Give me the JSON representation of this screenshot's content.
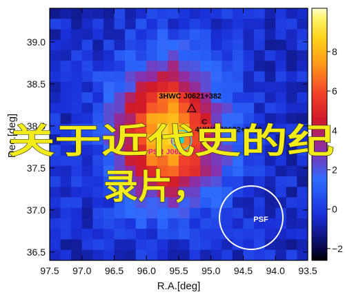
{
  "chart_data": {
    "type": "heatmap",
    "xlabel": "R.A.[deg]",
    "ylabel": "Dec.[deg]",
    "xlim": [
      97.5,
      93.5
    ],
    "ylim": [
      36.4,
      39.4
    ],
    "xticks": [
      "97.5",
      "97.0",
      "96.5",
      "96.0",
      "95.5",
      "95.0",
      "94.5",
      "94.0",
      "93.5"
    ],
    "yticks": [
      "36.5",
      "37.0",
      "37.5",
      "38.0",
      "38.5",
      "39.0"
    ],
    "colorbar": {
      "ticks": [
        "−2",
        "0",
        "2",
        "4",
        "6",
        "8"
      ],
      "range": [
        -2.6,
        10.2
      ]
    },
    "peak": {
      "ra": 95.65,
      "dec": 37.92,
      "value": 8.6,
      "sigma_deg": 0.55
    },
    "sources": [
      {
        "label": "3HWC J0621+382",
        "ra": 95.3,
        "dec": 38.21,
        "marker": "triangle",
        "color": "#000000"
      },
      {
        "label": "PSR J0622+3749",
        "ra": 95.55,
        "dec": 37.82,
        "marker": "circle-star",
        "color": "#e8208a"
      },
      {
        "label": "4HWC J0622+3749",
        "ra": 95.45,
        "dec": 37.83,
        "marker": "circle",
        "color": "#111111"
      },
      {
        "label": "C",
        "ra": 95.1,
        "dec": 38.02,
        "marker": "text",
        "color": "#111111"
      }
    ],
    "psf_label": "PSF",
    "overlay_text": {
      "line1": "关于近代史的纪",
      "line2": "录片，"
    }
  }
}
